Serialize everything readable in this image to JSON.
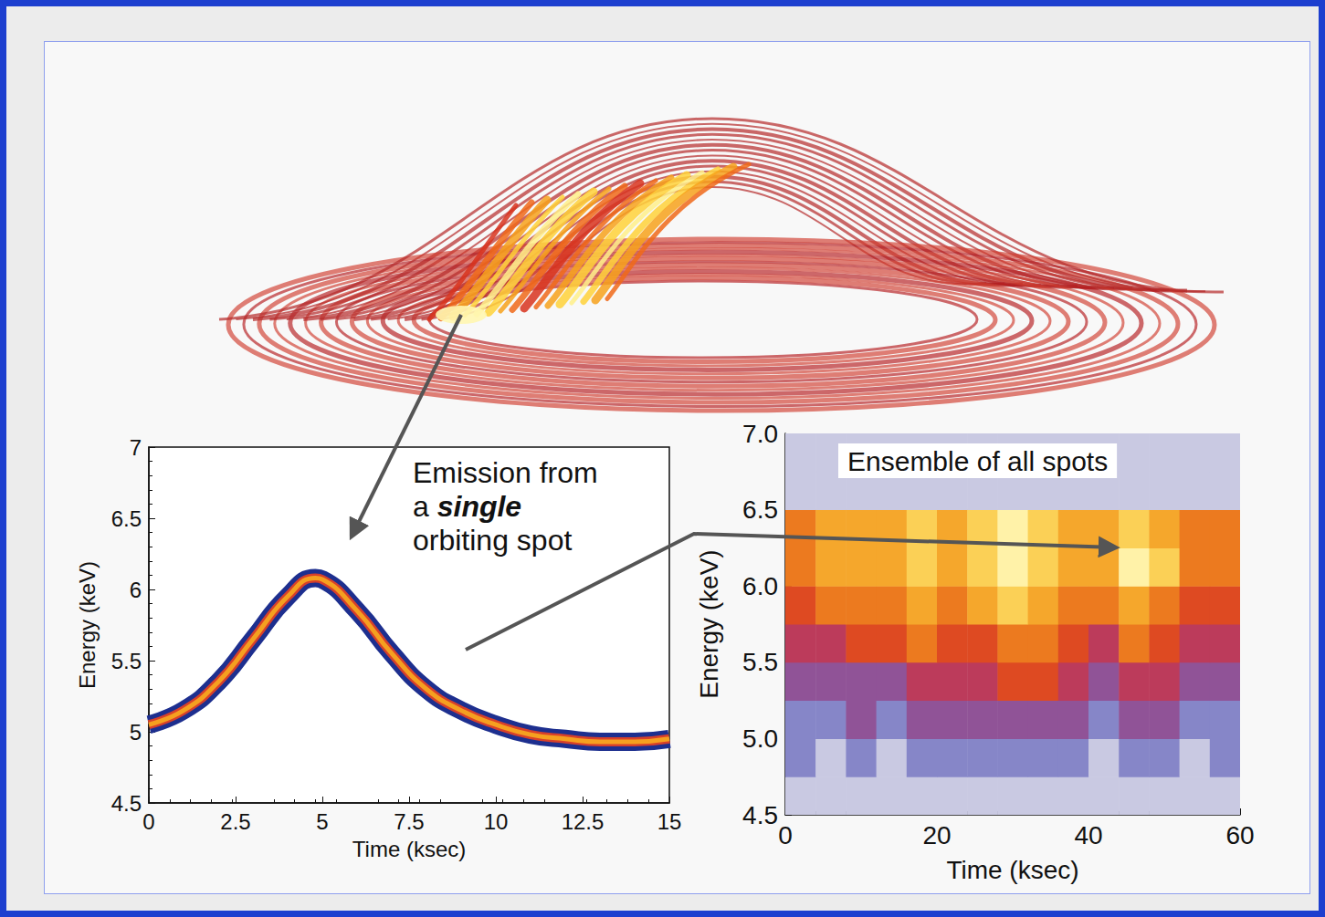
{
  "chart_data": [
    {
      "type": "line",
      "annotation": {
        "text": "Emission from a single orbiting spot",
        "emphasis": "single"
      },
      "x": [
        0,
        1,
        2,
        3,
        4,
        4.8,
        5,
        6,
        7,
        8,
        9,
        10,
        11,
        12,
        13,
        14,
        15
      ],
      "values": [
        5.05,
        5.15,
        5.35,
        5.65,
        5.95,
        6.08,
        6.07,
        5.85,
        5.55,
        5.3,
        5.15,
        5.05,
        4.98,
        4.95,
        4.93,
        4.93,
        4.95
      ],
      "color": "#f5a020",
      "xlabel": "Time (ksec)",
      "ylabel": "Energy (keV)",
      "xlim": [
        0,
        15
      ],
      "xticks": [
        0,
        2.5,
        5,
        7.5,
        10,
        12.5,
        15
      ],
      "ylim": [
        4.5,
        7
      ],
      "yticks": [
        4.5,
        5,
        5.5,
        6,
        6.5,
        7
      ]
    },
    {
      "type": "heatmap",
      "title": "Ensemble of all spots",
      "x_bins": [
        0,
        4,
        8,
        12,
        16,
        20,
        24,
        28,
        32,
        36,
        40,
        44,
        48,
        52,
        56,
        60
      ],
      "y_bins": [
        4.5,
        4.75,
        5.0,
        5.25,
        5.5,
        5.75,
        6.0,
        6.25,
        6.5,
        6.75,
        7.0
      ],
      "cells": [
        [
          1,
          1,
          1,
          1,
          1,
          1,
          1,
          1,
          1,
          1,
          1,
          1,
          1,
          1,
          1
        ],
        [
          2,
          1,
          2,
          1,
          2,
          2,
          2,
          2,
          2,
          2,
          1,
          2,
          2,
          1,
          2
        ],
        [
          2,
          2,
          3,
          2,
          3,
          3,
          3,
          3,
          3,
          3,
          2,
          3,
          3,
          2,
          2
        ],
        [
          3,
          3,
          3,
          3,
          4,
          4,
          4,
          5,
          5,
          4,
          3,
          4,
          4,
          3,
          3
        ],
        [
          4,
          4,
          5,
          5,
          6,
          5,
          5,
          6,
          6,
          5,
          4,
          6,
          5,
          4,
          4
        ],
        [
          5,
          6,
          6,
          6,
          7,
          6,
          7,
          8,
          7,
          6,
          6,
          7,
          6,
          5,
          5
        ],
        [
          6,
          7,
          7,
          7,
          8,
          7,
          8,
          9,
          8,
          7,
          7,
          9,
          8,
          6,
          6
        ],
        [
          6,
          7,
          7,
          7,
          8,
          7,
          8,
          9,
          8,
          7,
          7,
          8,
          7,
          6,
          6
        ],
        [
          1,
          1,
          1,
          1,
          1,
          1,
          1,
          1,
          1,
          1,
          1,
          1,
          1,
          1,
          1
        ],
        [
          1,
          1,
          1,
          1,
          1,
          1,
          1,
          1,
          1,
          1,
          1,
          1,
          1,
          1,
          1
        ]
      ],
      "xlabel": "Time (ksec)",
      "ylabel": "Energy (keV)",
      "xlim": [
        0,
        60
      ],
      "xticks": [
        0,
        20,
        40,
        60
      ],
      "ylim": [
        4.5,
        7
      ],
      "yticks": [
        4.5,
        {
          "value": 5,
          "label": "5.0"
        },
        5.5,
        {
          "value": 6,
          "label": "6.0"
        },
        6.5,
        {
          "value": 7,
          "label": "7.0"
        }
      ]
    }
  ]
}
